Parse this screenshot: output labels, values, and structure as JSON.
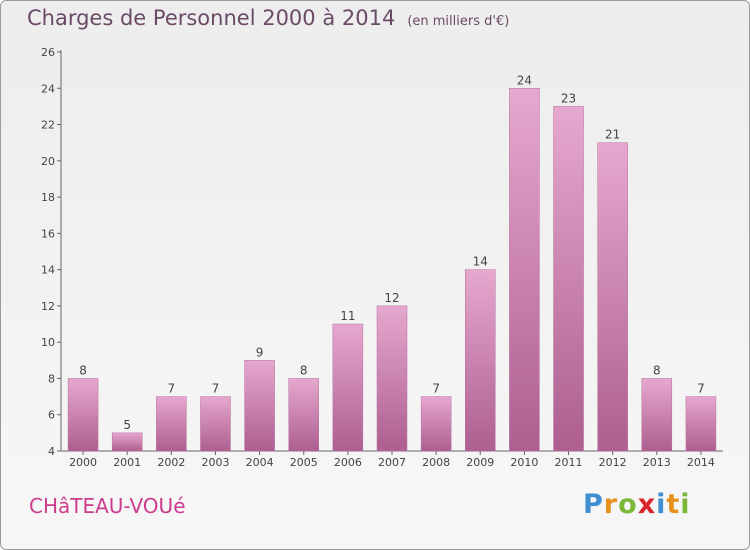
{
  "chart_data": {
    "type": "bar",
    "title": "Charges de Personnel 2000 à 2014",
    "subtitle": "(en milliers d'€)",
    "categories": [
      "2000",
      "2001",
      "2002",
      "2003",
      "2004",
      "2005",
      "2006",
      "2007",
      "2008",
      "2009",
      "2010",
      "2011",
      "2012",
      "2013",
      "2014"
    ],
    "values": [
      8,
      5,
      7,
      7,
      9,
      8,
      11,
      12,
      7,
      14,
      24,
      23,
      21,
      8,
      7
    ],
    "ylim": [
      4,
      26
    ],
    "yticks": [
      4,
      6,
      8,
      10,
      12,
      14,
      16,
      18,
      20,
      22,
      24,
      26
    ],
    "grid": false,
    "bar_color": "#d98fbb"
  },
  "place": "CHâTEAU-VOUé",
  "logo": {
    "letters": [
      "P",
      "r",
      "o",
      "x",
      "i",
      "t",
      "i"
    ],
    "colors": [
      "#3f8fd0",
      "#e8901e",
      "#7bb83a",
      "#d8262c",
      "#3f8fd0",
      "#e8901e",
      "#7bb83a"
    ]
  }
}
